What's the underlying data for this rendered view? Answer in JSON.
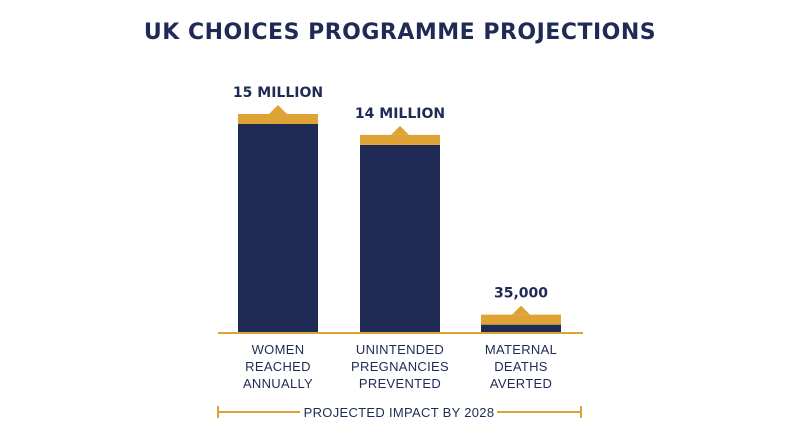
{
  "colors": {
    "navy": "#1f2b55",
    "gold": "#dfa235",
    "background": "#ffffff"
  },
  "chart_data": {
    "type": "bar",
    "title": "UK CHOICES PROGRAMME PROJECTIONS",
    "categories": [
      [
        "WOMEN",
        "REACHED",
        "ANNUALLY"
      ],
      [
        "UNINTENDED",
        "PREGNANCIES",
        "PREVENTED"
      ],
      [
        "MATERNAL",
        "DEATHS",
        "AVERTED"
      ]
    ],
    "value_labels": [
      "15 MILLION",
      "14 MILLION",
      "35,000"
    ],
    "bar_fill_fraction": [
      1.0,
      0.9,
      0.04
    ],
    "axis_label": "PROJECTED IMPACT BY 2028",
    "grid": false,
    "legend": "none"
  }
}
